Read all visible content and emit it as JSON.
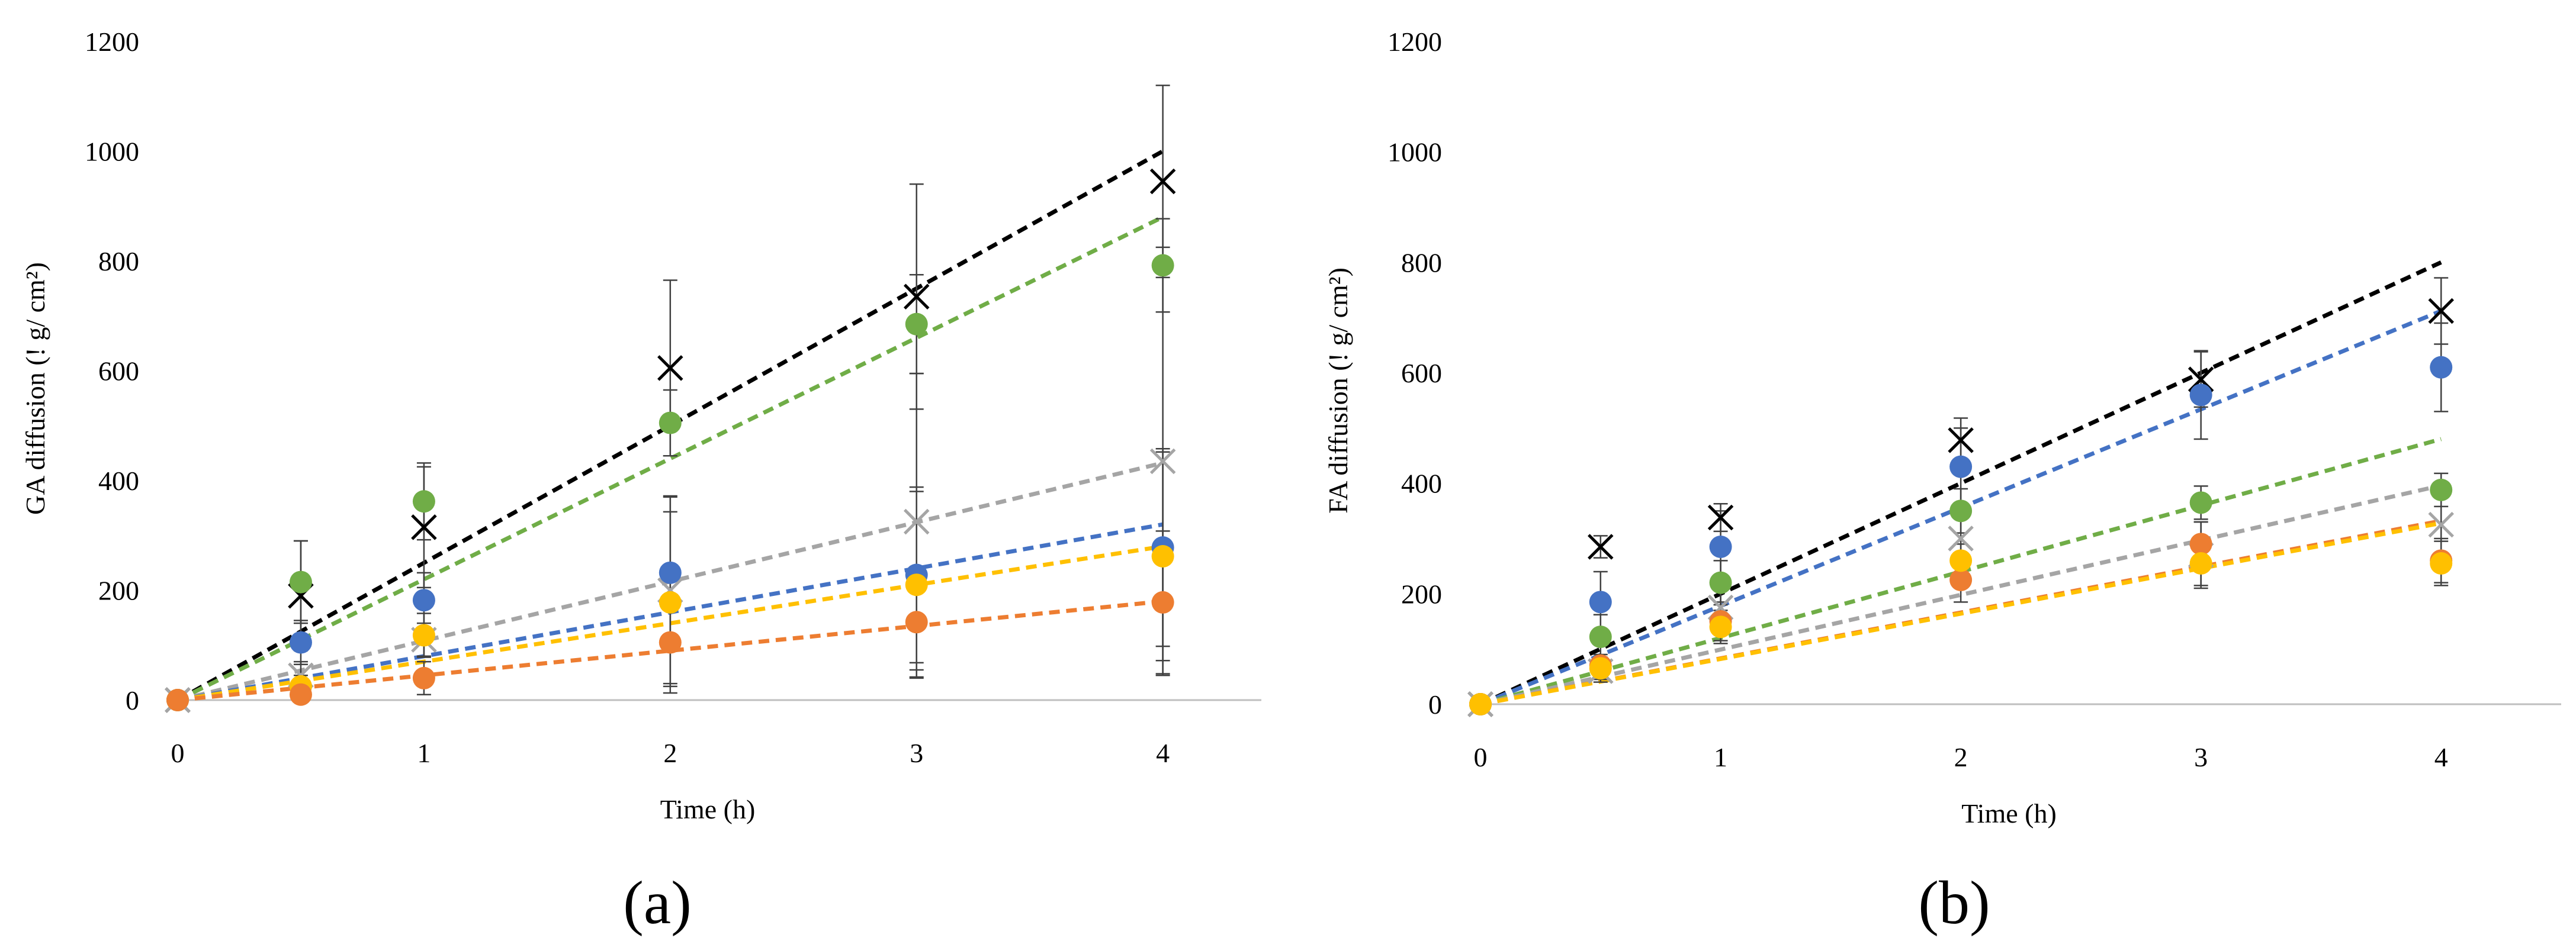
{
  "chart_data": [
    {
      "type": "scatter",
      "panel_label": "(a)",
      "title": "",
      "xlabel": "Time (h)",
      "ylabel": "GA diffusion (! g/ cm²)",
      "xlim": [
        0,
        4.4
      ],
      "ylim": [
        0,
        1200
      ],
      "x_ticks": [
        "0",
        "1",
        "2",
        "3",
        "4"
      ],
      "y_ticks": [
        "0",
        "200",
        "400",
        "600",
        "800",
        "1000",
        "1200"
      ],
      "x": [
        0,
        0.5,
        1,
        2,
        3,
        4
      ],
      "series": [
        {
          "name": "black",
          "color": "#000000",
          "marker": "x",
          "values": [
            0,
            190,
            315,
            605,
            735,
            945
          ],
          "errors": [
            0,
            100,
            110,
            160,
            205,
            175
          ],
          "trend_slope": 250
        },
        {
          "name": "green",
          "color": "#70ad47",
          "marker": "circle",
          "values": [
            0,
            215,
            362,
            505,
            685,
            792
          ],
          "errors": [
            0,
            75,
            70,
            60,
            90,
            85
          ],
          "trend_slope": 220
        },
        {
          "name": "gray",
          "color": "#a5a5a5",
          "marker": "x",
          "values": [
            0,
            45,
            110,
            200,
            325,
            435
          ],
          "errors": [
            0,
            25,
            30,
            170,
            270,
            390
          ],
          "trend_slope": 108
        },
        {
          "name": "blue",
          "color": "#4472c4",
          "marker": "circle",
          "values": [
            0,
            105,
            182,
            232,
            228,
            278
          ],
          "errors": [
            0,
            40,
            50,
            140,
            160,
            180
          ],
          "trend_slope": 80
        },
        {
          "name": "yellow",
          "color": "#ffc000",
          "marker": "circle",
          "values": [
            0,
            25,
            118,
            178,
            210,
            262
          ],
          "errors": [
            0,
            20,
            40,
            165,
            170,
            190
          ],
          "trend_slope": 70
        },
        {
          "name": "orange",
          "color": "#ed7d31",
          "marker": "circle",
          "values": [
            0,
            10,
            40,
            105,
            142,
            178
          ],
          "errors": [
            0,
            10,
            30,
            80,
            100,
            130
          ],
          "trend_slope": 45
        }
      ]
    },
    {
      "type": "scatter",
      "panel_label": "(b)",
      "title": "",
      "xlabel": "Time (h)",
      "ylabel": "FA diffusion (! g/ cm²)",
      "xlim": [
        0,
        4.5
      ],
      "ylim": [
        0,
        1200
      ],
      "x_ticks": [
        "0",
        "1",
        "2",
        "3",
        "4"
      ],
      "y_ticks": [
        "0",
        "200",
        "400",
        "600",
        "800",
        "1000",
        "1200"
      ],
      "x": [
        0,
        0.5,
        1,
        2,
        3,
        4
      ],
      "series": [
        {
          "name": "black",
          "color": "#000000",
          "marker": "x",
          "values": [
            0,
            285,
            338,
            478,
            588,
            712
          ],
          "errors": [
            0,
            20,
            25,
            40,
            50,
            60
          ],
          "trend_slope": 200
        },
        {
          "name": "blue",
          "color": "#4472c4",
          "marker": "circle",
          "values": [
            0,
            185,
            285,
            430,
            560,
            610
          ],
          "errors": [
            0,
            55,
            65,
            70,
            80,
            80
          ],
          "trend_slope": 178
        },
        {
          "name": "green",
          "color": "#70ad47",
          "marker": "circle",
          "values": [
            0,
            122,
            220,
            350,
            365,
            388
          ],
          "errors": [
            0,
            40,
            40,
            40,
            30,
            30
          ],
          "trend_slope": 120
        },
        {
          "name": "gray",
          "color": "#a5a5a5",
          "marker": "x",
          "values": [
            0,
            60,
            175,
            300,
            270,
            325
          ],
          "errors": [
            0,
            20,
            40,
            50,
            60,
            70
          ],
          "trend_slope": 99
        },
        {
          "name": "orange",
          "color": "#ed7d31",
          "marker": "circle",
          "values": [
            0,
            70,
            150,
            225,
            290,
            260
          ],
          "errors": [
            0,
            20,
            35,
            40,
            40,
            40
          ],
          "trend_slope": 83
        },
        {
          "name": "yellow",
          "color": "#ffc000",
          "marker": "circle",
          "values": [
            0,
            65,
            140,
            260,
            255,
            255
          ],
          "errors": [
            0,
            20,
            30,
            30,
            40,
            40
          ],
          "trend_slope": 82
        }
      ]
    }
  ]
}
